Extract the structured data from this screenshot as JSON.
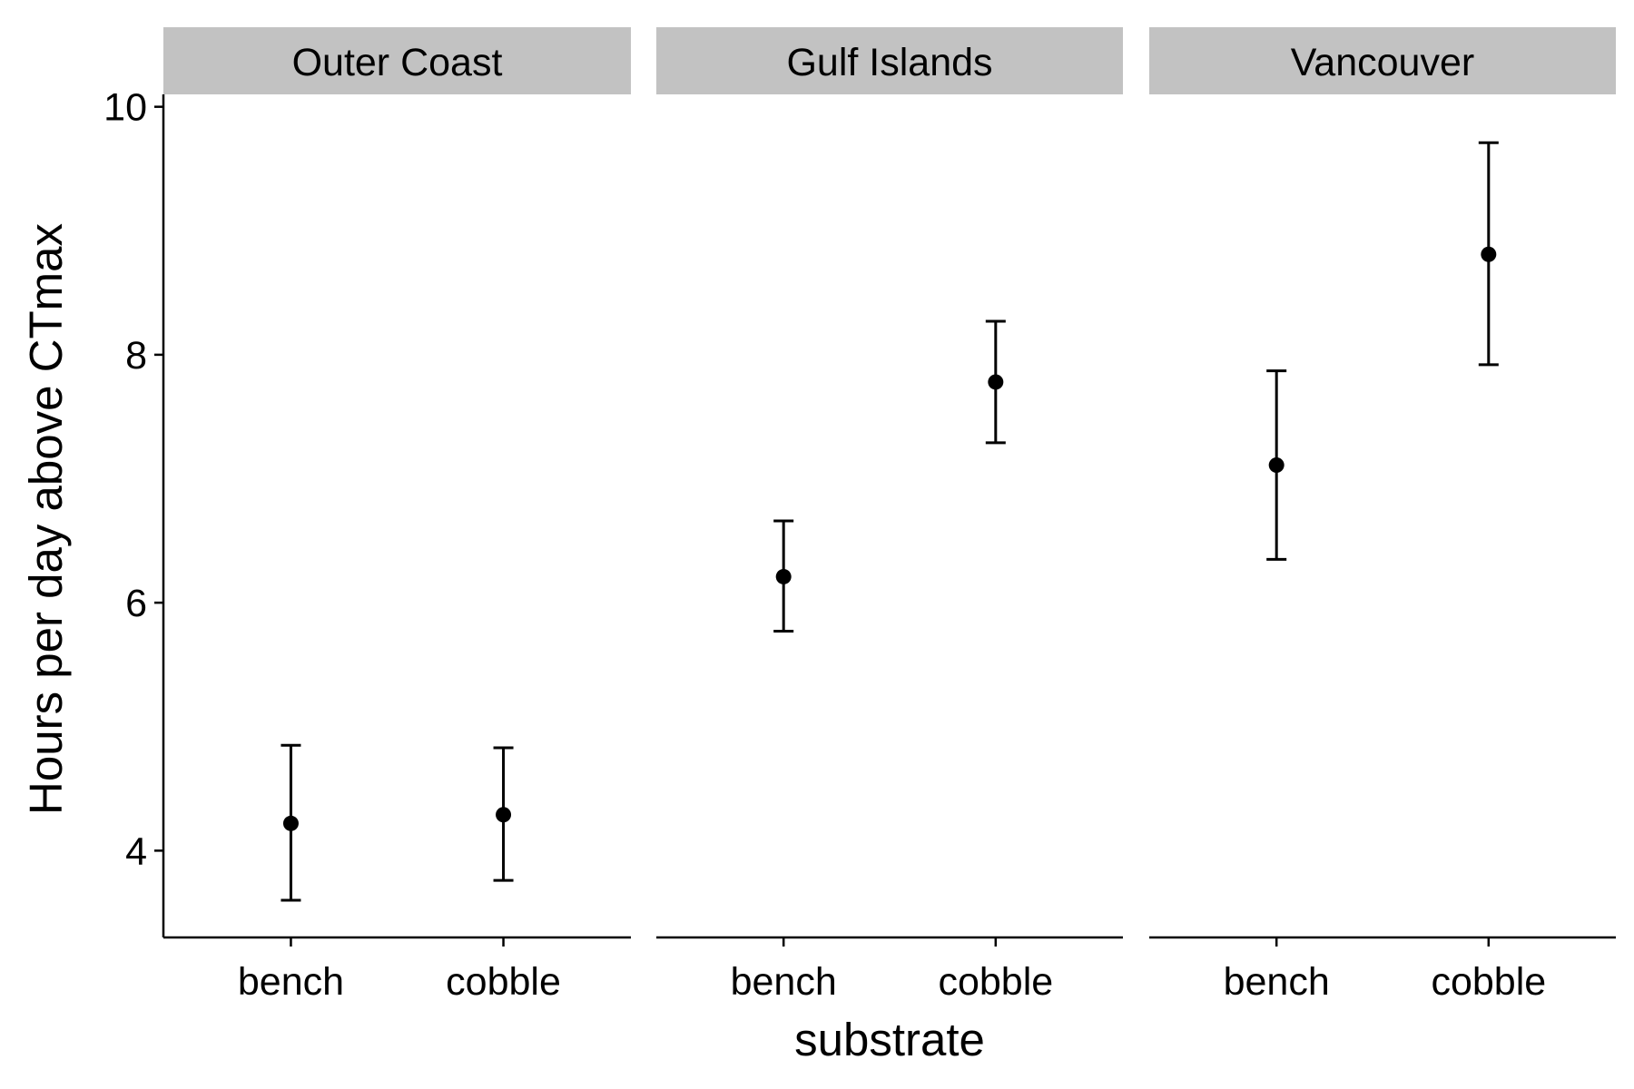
{
  "chart_data": {
    "type": "scatter",
    "facet_variable": "region",
    "panels": [
      "Outer Coast",
      "Gulf Islands",
      "Vancouver"
    ],
    "categories": [
      "bench",
      "cobble"
    ],
    "xlabel": "substrate",
    "ylabel": "Hours per day above CTmax",
    "ylim": [
      3.3,
      10.1
    ],
    "yticks": [
      4,
      6,
      8,
      10
    ],
    "grid": false,
    "legend": "none",
    "series": [
      {
        "panel": "Outer Coast",
        "points": [
          {
            "x": "bench",
            "y": 4.22,
            "ymin": 3.6,
            "ymax": 4.85
          },
          {
            "x": "cobble",
            "y": 4.29,
            "ymin": 3.76,
            "ymax": 4.83
          }
        ]
      },
      {
        "panel": "Gulf Islands",
        "points": [
          {
            "x": "bench",
            "y": 6.21,
            "ymin": 5.77,
            "ymax": 6.66
          },
          {
            "x": "cobble",
            "y": 7.78,
            "ymin": 7.29,
            "ymax": 8.27
          }
        ]
      },
      {
        "panel": "Vancouver",
        "points": [
          {
            "x": "bench",
            "y": 7.11,
            "ymin": 6.35,
            "ymax": 7.87
          },
          {
            "x": "cobble",
            "y": 8.81,
            "ymin": 7.92,
            "ymax": 9.71
          }
        ]
      }
    ],
    "colors": {
      "point": "#000000",
      "strip_background": "#c2c2c2",
      "axis": "#000000"
    }
  }
}
